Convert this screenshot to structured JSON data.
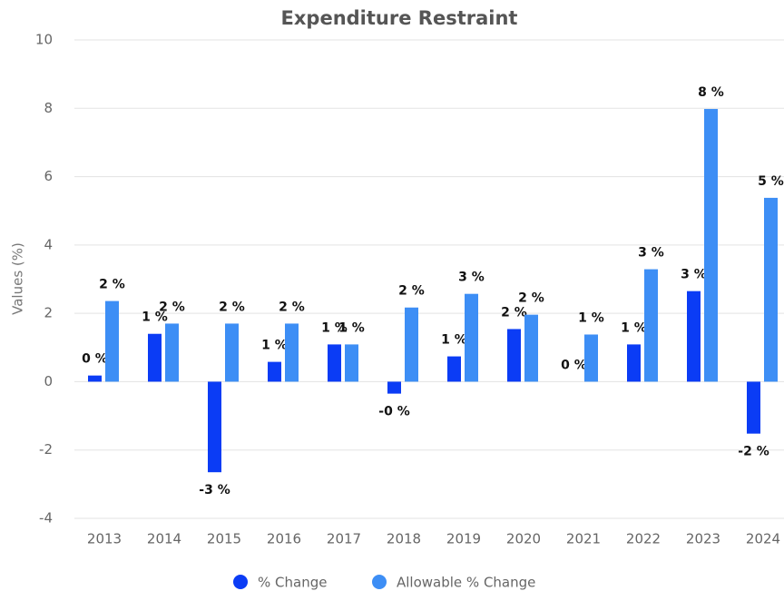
{
  "chart_data": {
    "type": "bar",
    "title": "Expenditure Restraint",
    "ylabel": "Values (%)",
    "categories": [
      "2013",
      "2014",
      "2015",
      "2016",
      "2017",
      "2018",
      "2019",
      "2020",
      "2021",
      "2022",
      "2023",
      "2024"
    ],
    "series": [
      {
        "name": "% Change",
        "color": "#0b3cf5",
        "values": [
          0.18,
          1.4,
          -2.65,
          0.58,
          1.09,
          -0.35,
          0.74,
          1.54,
          0,
          1.09,
          2.65,
          -1.52
        ],
        "value_labels": [
          "0 %",
          "1 %",
          "-3 %",
          "1 %",
          "1 %",
          "-0 %",
          "1 %",
          "2 %",
          "0 %",
          "1 %",
          "3 %",
          "-2 %"
        ]
      },
      {
        "name": "Allowable % Change",
        "color": "#3d8ef5",
        "values": [
          2.36,
          1.7,
          1.7,
          1.7,
          1.09,
          2.17,
          2.57,
          1.96,
          1.38,
          3.29,
          7.98,
          5.38
        ],
        "value_labels": [
          "2 %",
          "2 %",
          "2 %",
          "2 %",
          "1 %",
          "2 %",
          "3 %",
          "2 %",
          "1 %",
          "3 %",
          "8 %",
          "5 %"
        ]
      }
    ],
    "ylim": [
      -4,
      10
    ],
    "yticks": [
      -4,
      -2,
      0,
      2,
      4,
      6,
      8,
      10
    ],
    "grid": true,
    "legend": "bottom"
  }
}
